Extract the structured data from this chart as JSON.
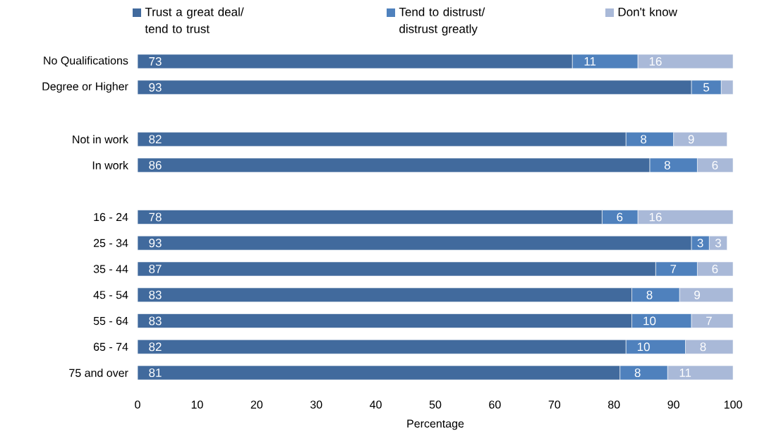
{
  "chart_data": {
    "type": "bar",
    "orientation": "horizontal",
    "stacked": true,
    "xlabel": "Percentage",
    "categories": [
      "No Qualifications",
      "Degree or Higher",
      null,
      "Not in work",
      "In work",
      null,
      "16 - 24",
      "25 - 34",
      "35 - 44",
      "45 - 54",
      "55 - 64",
      "65 - 74",
      "75 and over"
    ],
    "series": [
      {
        "name": "Trust a great deal/ tend to trust",
        "color": "#416a9d",
        "values": [
          73,
          93,
          null,
          82,
          86,
          null,
          78,
          93,
          87,
          83,
          83,
          82,
          81
        ],
        "value_labels": [
          "73",
          "93",
          null,
          "82",
          "86",
          null,
          "78",
          "93",
          "87",
          "83",
          "83",
          "82",
          "81"
        ]
      },
      {
        "name": "Tend to distrust/ distrust greatly",
        "color": "#4f81bd",
        "values": [
          11,
          5,
          null,
          8,
          8,
          null,
          6,
          3,
          7,
          8,
          10,
          10,
          8
        ],
        "value_labels": [
          "11",
          "5",
          null,
          "8",
          "8",
          null,
          "6",
          "3",
          "7",
          "8",
          "10",
          "10",
          "8"
        ]
      },
      {
        "name": "Don't know",
        "color": "#a9b9d8",
        "values": [
          16,
          2,
          null,
          9,
          6,
          null,
          16,
          3,
          6,
          9,
          7,
          8,
          11
        ],
        "value_labels": [
          "16",
          null,
          null,
          "9",
          "6",
          null,
          "16",
          "3",
          "6",
          "9",
          "7",
          "8",
          "11"
        ]
      }
    ],
    "xlim": [
      0,
      100
    ],
    "xticks": [
      0,
      10,
      20,
      30,
      40,
      50,
      60,
      70,
      80,
      90,
      100
    ],
    "legend": "top",
    "grid": false
  }
}
